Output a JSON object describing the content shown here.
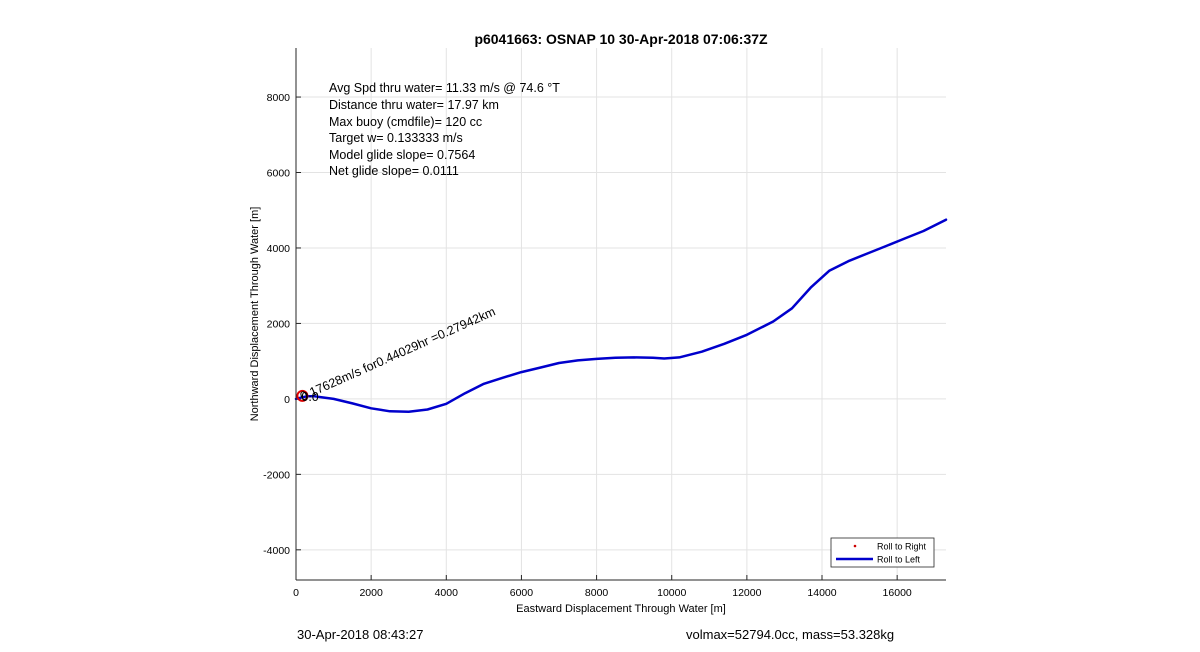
{
  "chart_data": {
    "type": "line",
    "title": "p6041663: OSNAP 10 30-Apr-2018 07:06:37Z",
    "xlabel": "Eastward Displacement Through Water [m]",
    "ylabel": "Northward Displacement Through Water [m]",
    "xlim": [
      0,
      17300
    ],
    "ylim": [
      -4800,
      9300
    ],
    "xticks": [
      0,
      2000,
      4000,
      6000,
      8000,
      10000,
      12000,
      14000,
      16000
    ],
    "yticks": [
      -4000,
      -2000,
      0,
      2000,
      4000,
      6000,
      8000
    ],
    "grid": true,
    "legend_position": "bottom-right",
    "annotations": [
      "Avg Spd thru water= 11.33 m/s @  74.6 °T",
      "Distance thru water= 17.97 km",
      "Max buoy (cmdfile)= 120 cc",
      "Target w= 0.133333 m/s",
      "Model glide slope= 0.7564",
      "Net glide slope= 0.0111"
    ],
    "marker_label": "0.17628m/s for0.44029hr =0.27942km",
    "marker_label_overlap": "0.0",
    "marker_point": {
      "x": 170,
      "y": 80
    },
    "series": [
      {
        "name": "Roll to Right",
        "color": "#cc0000",
        "style": "dots",
        "x": [],
        "y": []
      },
      {
        "name": "Roll to Left",
        "color": "#0000cc",
        "style": "line",
        "x": [
          0,
          150,
          300,
          500,
          700,
          1000,
          1500,
          2000,
          2500,
          3000,
          3500,
          4000,
          4500,
          5000,
          5500,
          6000,
          6500,
          7000,
          7500,
          8000,
          8500,
          9000,
          9500,
          9800,
          10200,
          10800,
          11400,
          12000,
          12700,
          13200,
          13700,
          14200,
          14700,
          15200,
          15700,
          16200,
          16700,
          17300
        ],
        "y": [
          0,
          40,
          70,
          70,
          40,
          0,
          -120,
          -250,
          -330,
          -340,
          -280,
          -130,
          150,
          400,
          560,
          710,
          830,
          950,
          1020,
          1060,
          1090,
          1100,
          1090,
          1070,
          1100,
          1250,
          1460,
          1700,
          2050,
          2400,
          2950,
          3400,
          3650,
          3850,
          4050,
          4250,
          4450,
          4750
        ]
      }
    ]
  },
  "footer": {
    "left": "30-Apr-2018 08:43:27",
    "right": "volmax=52794.0cc, mass=53.328kg"
  },
  "colors": {
    "grid": "#e3e3e3",
    "axes": "#262626",
    "marker_circle": "#dd0000"
  }
}
